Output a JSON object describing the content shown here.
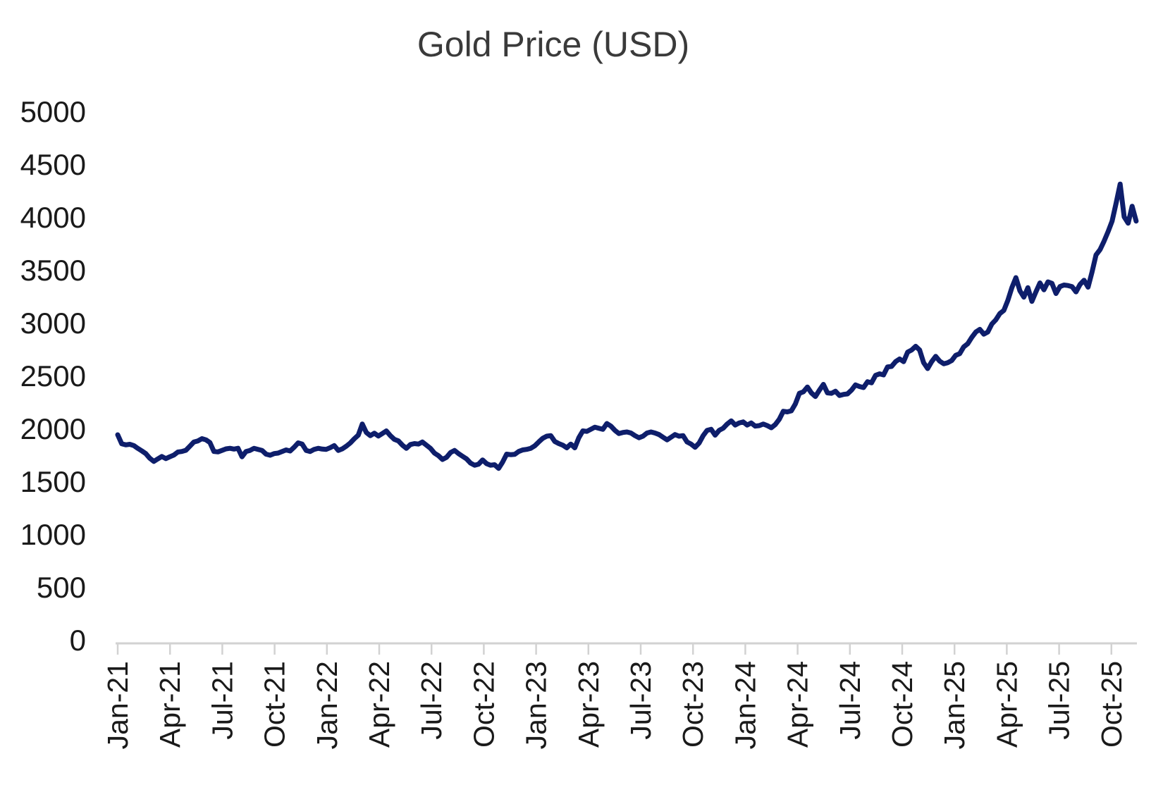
{
  "colors": {
    "line": "#0e1e6b",
    "axis": "#d2d2d2",
    "tick_label": "#1a1a1a",
    "title": "#3a3a3a",
    "background": "#ffffff"
  },
  "chart_data": {
    "type": "line",
    "title": "Gold Price (USD)",
    "series_name": "Gold Price (USD)",
    "xlabel": "",
    "ylabel": "",
    "grid": false,
    "legend": "none",
    "ylim": [
      0,
      5000
    ],
    "y_ticks": [
      0,
      500,
      1000,
      1500,
      2000,
      2500,
      3000,
      3500,
      4000,
      4500,
      5000
    ],
    "x_frequency": "weekly",
    "x_start": "Jan-2021",
    "x_end": "Nov-2025",
    "x_tick_labels": [
      "Jan-21",
      "Apr-21",
      "Jul-21",
      "Oct-21",
      "Jan-22",
      "Apr-22",
      "Jul-22",
      "Oct-22",
      "Jan-23",
      "Apr-23",
      "Jul-23",
      "Oct-23",
      "Jan-24",
      "Apr-24",
      "Jul-24",
      "Oct-24",
      "Jan-25",
      "Apr-25",
      "Jul-25",
      "Oct-25"
    ],
    "values": [
      1940,
      1855,
      1845,
      1850,
      1838,
      1812,
      1788,
      1762,
      1718,
      1688,
      1712,
      1735,
      1715,
      1732,
      1748,
      1777,
      1782,
      1793,
      1832,
      1872,
      1882,
      1903,
      1892,
      1867,
      1782,
      1778,
      1792,
      1807,
      1812,
      1805,
      1812,
      1732,
      1782,
      1792,
      1812,
      1802,
      1792,
      1757,
      1747,
      1762,
      1767,
      1782,
      1797,
      1787,
      1822,
      1863,
      1852,
      1792,
      1782,
      1802,
      1812,
      1805,
      1802,
      1818,
      1838,
      1792,
      1807,
      1832,
      1862,
      1902,
      1937,
      2042,
      1962,
      1932,
      1955,
      1928,
      1952,
      1977,
      1932,
      1897,
      1882,
      1842,
      1812,
      1848,
      1857,
      1852,
      1872,
      1842,
      1812,
      1767,
      1742,
      1707,
      1727,
      1772,
      1792,
      1762,
      1737,
      1712,
      1672,
      1652,
      1662,
      1702,
      1667,
      1652,
      1657,
      1622,
      1682,
      1757,
      1752,
      1755,
      1782,
      1797,
      1802,
      1812,
      1835,
      1872,
      1907,
      1927,
      1932,
      1877,
      1857,
      1842,
      1817,
      1852,
      1817,
      1912,
      1977,
      1972,
      1992,
      2012,
      2002,
      1992,
      2047,
      2022,
      1982,
      1952,
      1962,
      1967,
      1957,
      1932,
      1912,
      1927,
      1957,
      1967,
      1957,
      1942,
      1917,
      1892,
      1917,
      1942,
      1927,
      1932,
      1872,
      1852,
      1822,
      1862,
      1932,
      1982,
      1992,
      1937,
      1982,
      2002,
      2042,
      2072,
      2032,
      2052,
      2062,
      2032,
      2052,
      2022,
      2027,
      2042,
      2027,
      2007,
      2037,
      2087,
      2162,
      2157,
      2167,
      2232,
      2332,
      2347,
      2392,
      2337,
      2302,
      2362,
      2417,
      2337,
      2332,
      2352,
      2312,
      2322,
      2327,
      2362,
      2412,
      2397,
      2387,
      2442,
      2432,
      2502,
      2517,
      2507,
      2582,
      2587,
      2632,
      2657,
      2632,
      2722,
      2742,
      2777,
      2742,
      2622,
      2567,
      2632,
      2682,
      2637,
      2612,
      2622,
      2642,
      2692,
      2707,
      2772,
      2802,
      2862,
      2912,
      2937,
      2892,
      2912,
      2987,
      3027,
      3087,
      3117,
      3212,
      3332,
      3427,
      3302,
      3242,
      3332,
      3202,
      3292,
      3377,
      3312,
      3387,
      3372,
      3277,
      3342,
      3357,
      3352,
      3342,
      3292,
      3362,
      3402,
      3337,
      3482,
      3642,
      3692,
      3772,
      3862,
      3962,
      4132,
      4312,
      4002,
      3942,
      4102,
      3962
    ]
  }
}
